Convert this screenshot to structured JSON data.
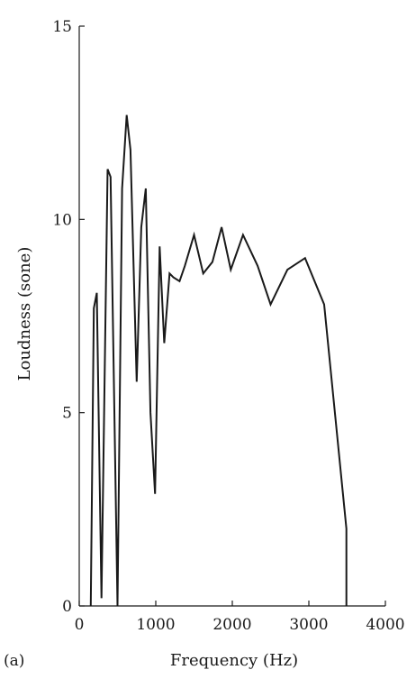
{
  "chart_data": {
    "type": "line",
    "panel_label": "(a)",
    "xlabel": "Frequency (Hz)",
    "ylabel": "Loudness (sone)",
    "xlim": [
      0,
      4000
    ],
    "ylim": [
      0,
      15
    ],
    "xticks": [
      0,
      1000,
      2000,
      3000,
      4000
    ],
    "yticks": [
      0,
      5,
      10,
      15
    ],
    "grid": false,
    "series": [
      {
        "x": [
          150,
          190,
          230,
          290,
          370,
          410,
          500,
          560,
          620,
          670,
          750,
          810,
          870,
          930,
          990,
          1050,
          1110,
          1180,
          1230,
          1310,
          1380,
          1500,
          1620,
          1740,
          1860,
          1980,
          2140,
          2330,
          2500,
          2720,
          2950,
          3200,
          3490,
          3490
        ],
        "y": [
          0,
          7.7,
          8.1,
          0.2,
          11.3,
          11.1,
          0,
          10.8,
          12.7,
          11.8,
          5.8,
          9.8,
          10.8,
          5.0,
          2.9,
          9.3,
          6.8,
          8.6,
          8.5,
          8.4,
          8.8,
          9.6,
          8.6,
          8.9,
          9.8,
          8.7,
          9.6,
          8.8,
          7.8,
          8.7,
          9.0,
          7.8,
          2.0,
          0
        ],
        "color": "#1a1a1a"
      }
    ]
  }
}
